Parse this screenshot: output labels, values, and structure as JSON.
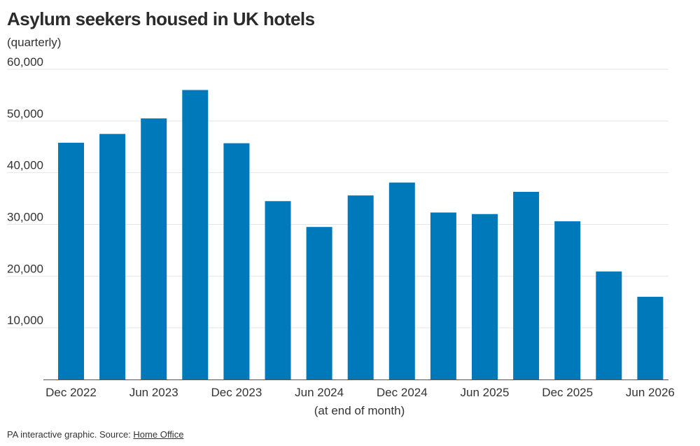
{
  "title": "Asylum seekers housed in UK hotels",
  "subtitle": "(quarterly)",
  "footer": {
    "credit": "PA interactive graphic. Source: ",
    "source_link": "Home Office"
  },
  "colors": {
    "bar": "#0079bb",
    "grid": "#e4e4e4",
    "axis": "#555555",
    "text": "#333333"
  },
  "chart_data": {
    "type": "bar",
    "title": "Asylum seekers housed in UK hotels",
    "subtitle": "(quarterly)",
    "xlabel": "(at end of month)",
    "ylabel": "",
    "ylim": [
      0,
      60000
    ],
    "yticks": [
      10000,
      20000,
      30000,
      40000,
      50000,
      60000
    ],
    "ytick_labels": [
      "10,000",
      "20,000",
      "30,000",
      "40,000",
      "50,000",
      "60,000"
    ],
    "grid": true,
    "categories": [
      "Dec 2022",
      "Mar 2023",
      "Jun 2023",
      "Sep 2023",
      "Dec 2023",
      "Mar 2024",
      "Jun 2024",
      "Sep 2024",
      "Dec 2024",
      "Mar 2025",
      "Jun 2025",
      "Sep 2025",
      "Dec 2025",
      "Mar 2026",
      "Jun 2026"
    ],
    "xtick_labels": [
      "Dec 2022",
      "",
      "Jun 2023",
      "",
      "Dec 2023",
      "",
      "Jun 2024",
      "",
      "Dec 2024",
      "",
      "Jun 2025",
      "",
      "Dec 2025",
      "",
      "Jun 2026"
    ],
    "values": [
      45800,
      47500,
      50500,
      56000,
      45700,
      34500,
      29500,
      35600,
      38100,
      32300,
      32000,
      36300,
      30600,
      20900,
      16000
    ]
  }
}
